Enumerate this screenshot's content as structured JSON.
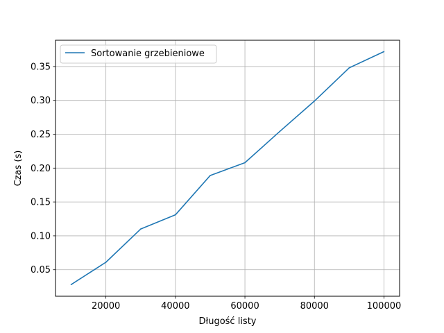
{
  "chart_data": {
    "type": "line",
    "title": "",
    "xlabel": "Długość listy",
    "ylabel": "Czas (s)",
    "x": [
      10000,
      20000,
      30000,
      40000,
      50000,
      60000,
      70000,
      80000,
      90000,
      100000
    ],
    "series": [
      {
        "name": "Sortowanie grzebieniowe",
        "color": "#1f77b4",
        "values": [
          0.028,
          0.061,
          0.11,
          0.131,
          0.189,
          0.208,
          0.254,
          0.299,
          0.348,
          0.372
        ]
      }
    ],
    "xlim": [
      5500,
      104500
    ],
    "ylim": [
      0.0108,
      0.3888
    ],
    "xticks": [
      20000,
      40000,
      60000,
      80000,
      100000
    ],
    "xtick_labels": [
      "20000",
      "40000",
      "60000",
      "80000",
      "100000"
    ],
    "yticks": [
      0.05,
      0.1,
      0.15,
      0.2,
      0.25,
      0.3,
      0.35
    ],
    "ytick_labels": [
      "0.05",
      "0.10",
      "0.15",
      "0.20",
      "0.25",
      "0.30",
      "0.35"
    ],
    "grid": true,
    "legend_position": "upper-left"
  }
}
